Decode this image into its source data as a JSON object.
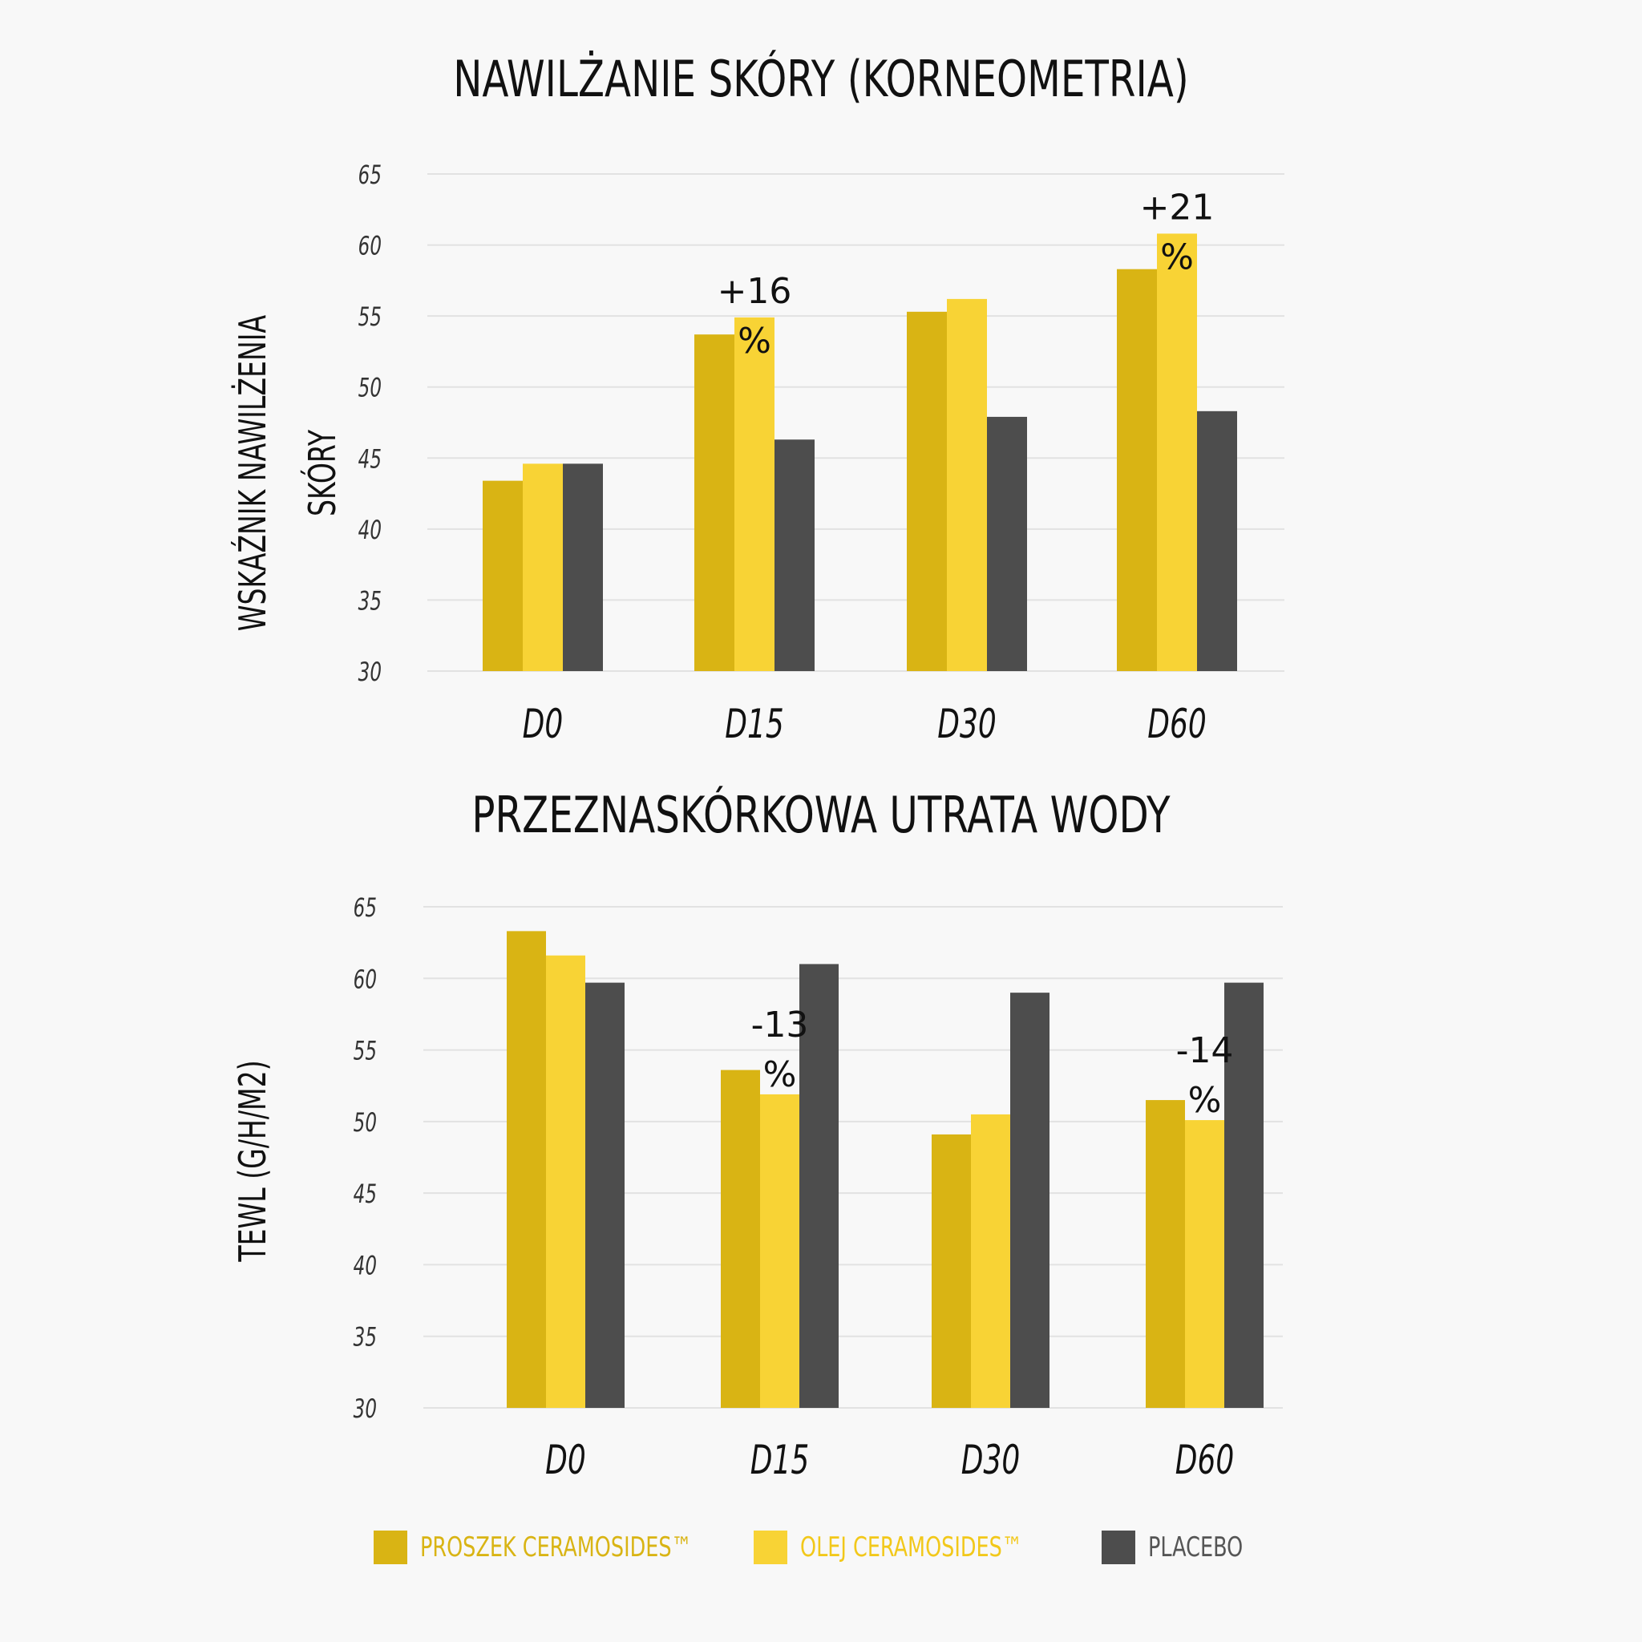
{
  "legend": [
    {
      "label": "PROSZEK CERAMOSIDES™",
      "color": "#d9b414",
      "text_color": "#d9b414"
    },
    {
      "label": "OLEJ CERAMOSIDES™",
      "color": "#f8d335",
      "text_color": "#f2c81a"
    },
    {
      "label": "PLACEBO",
      "color": "#4d4d4d",
      "text_color": "#555555"
    }
  ],
  "chart_data": [
    {
      "type": "bar",
      "title": "NAWILŻANIE SKÓRY (KORNEOMETRIA)",
      "ylabel": [
        "WSKAŹNIK NAWILŻENIA",
        "SKÓRY"
      ],
      "categories": [
        "D0",
        "D15",
        "D30",
        "D60"
      ],
      "ylim": [
        30,
        65
      ],
      "yticks": [
        30,
        35,
        40,
        45,
        50,
        55,
        60,
        65
      ],
      "grid": true,
      "series": [
        {
          "name": "PROSZEK CERAMOSIDES™",
          "color": "#d9b414",
          "values": [
            43.4,
            53.7,
            55.3,
            58.3
          ]
        },
        {
          "name": "OLEJ CERAMOSIDES™",
          "color": "#f8d335",
          "values": [
            44.6,
            54.9,
            56.2,
            60.8
          ]
        },
        {
          "name": "PLACEBO",
          "color": "#4d4d4d",
          "values": [
            44.6,
            46.3,
            47.9,
            48.3
          ]
        }
      ],
      "annotations": [
        {
          "category": "D15",
          "series": 1,
          "line1": "+16",
          "line2": "%"
        },
        {
          "category": "D60",
          "series": 1,
          "line1": "+21",
          "line2": "%"
        }
      ]
    },
    {
      "type": "bar",
      "title": "PRZEZNASKÓRKOWA UTRATA WODY",
      "ylabel": [
        "TEWL (G/H/M2)"
      ],
      "categories": [
        "D0",
        "D15",
        "D30",
        "D60"
      ],
      "ylim": [
        30,
        65
      ],
      "yticks": [
        30,
        35,
        40,
        45,
        50,
        55,
        60,
        65
      ],
      "grid": true,
      "series": [
        {
          "name": "PROSZEK CERAMOSIDES™",
          "color": "#d9b414",
          "values": [
            63.3,
            53.6,
            49.1,
            51.5
          ]
        },
        {
          "name": "OLEJ CERAMOSIDES™",
          "color": "#f8d335",
          "values": [
            61.6,
            51.9,
            50.5,
            50.1
          ]
        },
        {
          "name": "PLACEBO",
          "color": "#4d4d4d",
          "values": [
            59.7,
            61.0,
            59.0,
            59.7
          ]
        }
      ],
      "annotations": [
        {
          "category": "D15",
          "series": 1,
          "line1": "-13",
          "line2": "%"
        },
        {
          "category": "D60",
          "series": 1,
          "line1": "-14",
          "line2": "%"
        }
      ]
    }
  ]
}
